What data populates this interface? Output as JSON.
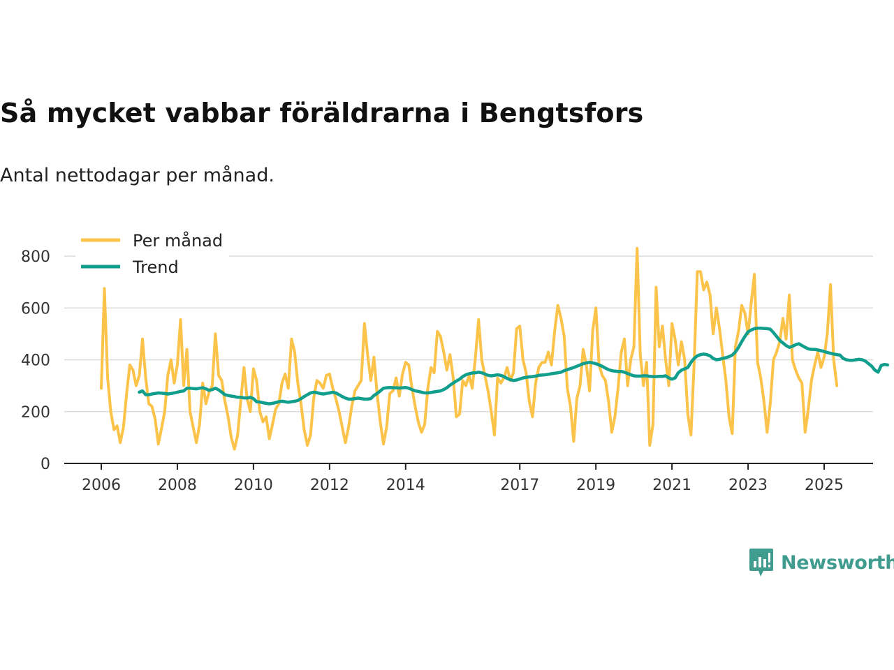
{
  "header": {
    "title": "Så mycket vabbar föräldrarna i Bengtsfors",
    "subtitle": "Antal nettodagar per månad."
  },
  "brand": {
    "name": "Newsworthy",
    "icon": "newsworthy-logo-icon",
    "color": "#3f9c8e"
  },
  "chart_data": {
    "type": "line",
    "x_start": "2006-01",
    "ylim": [
      0,
      850
    ],
    "yticks": [
      0,
      200,
      400,
      600,
      800
    ],
    "xticks": [
      2006,
      2008,
      2010,
      2012,
      2014,
      2017,
      2019,
      2021,
      2023,
      2025
    ],
    "grid": true,
    "legend_position": "top-left",
    "series": [
      {
        "name": "Per månad",
        "color": "#fcc34a",
        "values": [
          290,
          675,
          330,
          200,
          130,
          145,
          80,
          140,
          270,
          380,
          360,
          300,
          340,
          480,
          330,
          230,
          220,
          170,
          75,
          135,
          200,
          340,
          400,
          310,
          380,
          555,
          300,
          440,
          200,
          140,
          80,
          150,
          310,
          230,
          275,
          300,
          500,
          340,
          320,
          240,
          180,
          100,
          55,
          110,
          240,
          370,
          250,
          200,
          365,
          320,
          200,
          160,
          180,
          95,
          150,
          210,
          230,
          310,
          345,
          290,
          480,
          430,
          310,
          230,
          130,
          70,
          110,
          250,
          320,
          310,
          290,
          340,
          345,
          290,
          250,
          200,
          140,
          80,
          140,
          220,
          280,
          300,
          320,
          540,
          420,
          320,
          410,
          270,
          160,
          75,
          140,
          270,
          280,
          330,
          260,
          345,
          390,
          380,
          290,
          220,
          160,
          120,
          150,
          290,
          370,
          350,
          510,
          490,
          430,
          360,
          420,
          330,
          180,
          190,
          320,
          300,
          340,
          290,
          410,
          555,
          400,
          340,
          280,
          200,
          110,
          330,
          310,
          330,
          370,
          320,
          350,
          520,
          530,
          400,
          350,
          240,
          180,
          310,
          370,
          390,
          390,
          430,
          380,
          510,
          610,
          560,
          490,
          290,
          220,
          85,
          250,
          300,
          440,
          380,
          280,
          510,
          600,
          380,
          340,
          320,
          240,
          120,
          180,
          290,
          430,
          480,
          300,
          400,
          450,
          830,
          420,
          300,
          390,
          70,
          150,
          680,
          450,
          530,
          400,
          300,
          540,
          480,
          380,
          470,
          400,
          190,
          110,
          390,
          740,
          740,
          670,
          700,
          650,
          500,
          600,
          520,
          420,
          320,
          180,
          115,
          450,
          510,
          610,
          580,
          500,
          620,
          730,
          390,
          330,
          240,
          120,
          230,
          400,
          430,
          470,
          560,
          480,
          650,
          400,
          360,
          330,
          310,
          120,
          210,
          320,
          380,
          430,
          370,
          410,
          500,
          690,
          400,
          300
        ],
        "values_note": "monthly, starting Jan 2006"
      },
      {
        "name": "Trend",
        "color": "#129e8c",
        "values": [
          275,
          280,
          265,
          265,
          268,
          270,
          272,
          271,
          270,
          268,
          270,
          272,
          275,
          278,
          280,
          290,
          290,
          289,
          288,
          290,
          292,
          288,
          282,
          285,
          290,
          284,
          275,
          265,
          262,
          260,
          258,
          255,
          255,
          253,
          252,
          255,
          250,
          238,
          237,
          234,
          232,
          230,
          232,
          235,
          238,
          240,
          238,
          236,
          238,
          240,
          243,
          250,
          258,
          265,
          272,
          275,
          273,
          270,
          268,
          270,
          272,
          275,
          272,
          265,
          258,
          252,
          248,
          248,
          250,
          252,
          250,
          248,
          248,
          250,
          262,
          270,
          280,
          290,
          292,
          293,
          292,
          292,
          291,
          292,
          293,
          290,
          285,
          280,
          278,
          275,
          272,
          272,
          274,
          276,
          278,
          280,
          285,
          292,
          302,
          310,
          318,
          325,
          335,
          342,
          346,
          349,
          350,
          352,
          350,
          345,
          340,
          338,
          340,
          342,
          340,
          335,
          328,
          323,
          320,
          322,
          326,
          330,
          332,
          334,
          335,
          337,
          340,
          341,
          342,
          344,
          346,
          348,
          350,
          352,
          358,
          362,
          366,
          370,
          375,
          380,
          385,
          388,
          390,
          388,
          385,
          380,
          375,
          368,
          362,
          358,
          356,
          355,
          355,
          352,
          347,
          342,
          338,
          337,
          337,
          338,
          338,
          336,
          335,
          335,
          336,
          336,
          338,
          330,
          325,
          330,
          350,
          360,
          365,
          370,
          390,
          405,
          415,
          420,
          422,
          420,
          415,
          405,
          400,
          402,
          405,
          408,
          412,
          418,
          430,
          448,
          470,
          490,
          508,
          515,
          520,
          522,
          522,
          521,
          520,
          518,
          505,
          490,
          475,
          465,
          455,
          448,
          452,
          458,
          462,
          455,
          448,
          442,
          440,
          440,
          438,
          435,
          432,
          428,
          425,
          422,
          420,
          418,
          405,
          400,
          398,
          398,
          400,
          402,
          400,
          395,
          385,
          375,
          360,
          352,
          378,
          382,
          380
        ]
      }
    ]
  }
}
